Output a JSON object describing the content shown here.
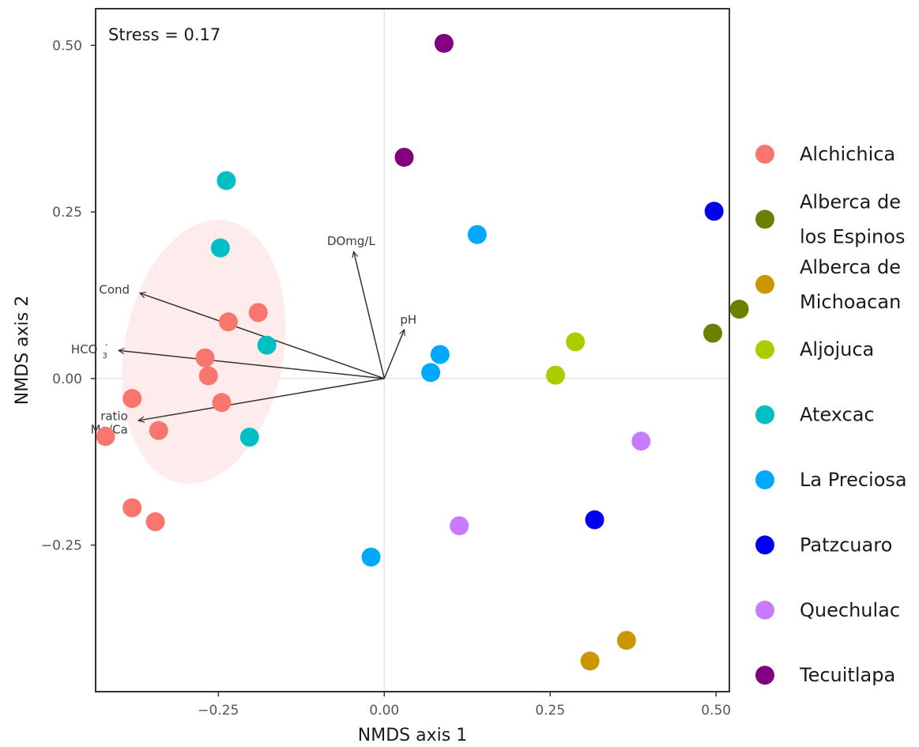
{
  "chart_data": {
    "type": "scatter",
    "xlabel": "NMDS axis 1",
    "ylabel": "NMDS axis 2",
    "annotation": "Stress = 0.17",
    "xlim": [
      -0.435,
      0.52
    ],
    "ylim": [
      -0.47,
      0.555
    ],
    "xticks": [
      -0.25,
      0.0,
      0.25,
      0.5
    ],
    "xtick_labels": [
      "−0.25",
      "0.00",
      "0.25",
      "0.50"
    ],
    "yticks": [
      -0.25,
      0.0,
      0.25,
      0.5
    ],
    "ytick_labels": [
      "−0.25",
      "0.00",
      "0.25",
      "0.50"
    ],
    "grid": "zero-lines",
    "legend_position": "right",
    "series": [
      {
        "name": "Alchichica",
        "legend_lines": [
          "Alchichica"
        ],
        "color": "#F8766D",
        "points": [
          [
            -0.19,
            0.099
          ],
          [
            -0.235,
            0.085
          ],
          [
            -0.27,
            0.031
          ],
          [
            -0.265,
            0.004
          ],
          [
            -0.245,
            -0.036
          ],
          [
            -0.38,
            -0.03
          ],
          [
            -0.34,
            -0.078
          ],
          [
            -0.42,
            -0.087
          ],
          [
            -0.38,
            -0.194
          ],
          [
            -0.345,
            -0.215
          ]
        ]
      },
      {
        "name": "Alberca de los Espinos",
        "legend_lines": [
          "Alberca de",
          "los Espinos"
        ],
        "color": "#6B7F00",
        "points": [
          [
            0.535,
            0.104
          ],
          [
            0.495,
            0.068
          ]
        ]
      },
      {
        "name": "Alberca de Michoacan",
        "legend_lines": [
          "Alberca de",
          "Michoacan"
        ],
        "color": "#CC9600",
        "points": [
          [
            0.365,
            -0.393
          ],
          [
            0.31,
            -0.424
          ]
        ]
      },
      {
        "name": "Aljojuca",
        "legend_lines": [
          "Aljojuca"
        ],
        "color": "#ABCC00",
        "points": [
          [
            0.288,
            0.055
          ],
          [
            0.258,
            0.005
          ]
        ]
      },
      {
        "name": "Atexcac",
        "legend_lines": [
          "Atexcac"
        ],
        "color": "#00BFC4",
        "points": [
          [
            -0.238,
            0.297
          ],
          [
            -0.247,
            0.196
          ],
          [
            -0.177,
            0.05
          ],
          [
            -0.203,
            -0.088
          ]
        ]
      },
      {
        "name": "La Preciosa",
        "legend_lines": [
          "La Preciosa"
        ],
        "color": "#00A9FF",
        "points": [
          [
            0.14,
            0.216
          ],
          [
            0.084,
            0.036
          ],
          [
            0.07,
            0.009
          ],
          [
            -0.02,
            -0.268
          ]
        ]
      },
      {
        "name": "Patzcuaro",
        "legend_lines": [
          "Patzcuaro"
        ],
        "color": "#0000F0",
        "points": [
          [
            0.497,
            0.251
          ],
          [
            0.317,
            -0.212
          ]
        ]
      },
      {
        "name": "Quechulac",
        "legend_lines": [
          "Quechulac"
        ],
        "color": "#C77CFF",
        "points": [
          [
            0.387,
            -0.094
          ],
          [
            0.113,
            -0.221
          ]
        ]
      },
      {
        "name": "Tecuitlapa",
        "legend_lines": [
          "Tecuitlapa"
        ],
        "color": "#800080",
        "points": [
          [
            0.09,
            0.503
          ],
          [
            0.03,
            0.332
          ]
        ]
      }
    ],
    "vectors": [
      {
        "label": "DOmg/L",
        "end": [
          -0.046,
          0.19
        ]
      },
      {
        "label": "pH",
        "end": [
          0.03,
          0.073
        ]
      },
      {
        "label": "Cond",
        "end": [
          -0.368,
          0.128
        ]
      },
      {
        "label": "HCO",
        "sub": "3",
        "sup": "-",
        "end": [
          -0.4,
          0.042
        ]
      },
      {
        "label": "ratio",
        "label2": "Mg/Ca",
        "end": [
          -0.37,
          -0.063
        ]
      }
    ],
    "ellipse": {
      "group": "Alchichica",
      "cx": -0.272,
      "cy": 0.04,
      "rx": 0.12,
      "ry": 0.2,
      "rotate_deg": 10,
      "fill": "#FDECEB"
    }
  }
}
